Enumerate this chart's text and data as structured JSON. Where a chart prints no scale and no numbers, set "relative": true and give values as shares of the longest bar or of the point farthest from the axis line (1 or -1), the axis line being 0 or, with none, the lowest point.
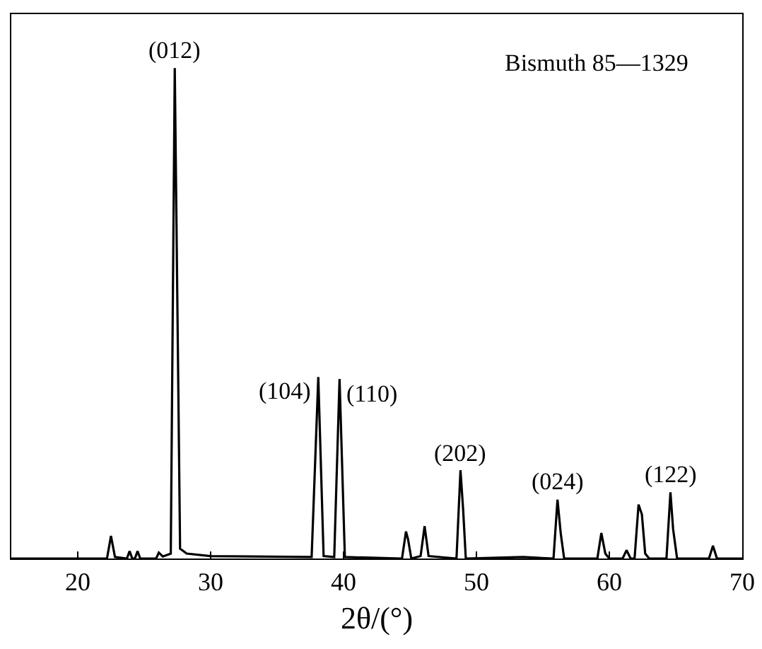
{
  "chart_data": {
    "type": "line",
    "xlabel": "2θ/(°)",
    "relative": true,
    "tick_labels": "x",
    "grid": false,
    "marker": "none",
    "line_style": "solid",
    "xlim": [
      15,
      70
    ],
    "xticks": [
      20,
      30,
      40,
      50,
      60,
      70
    ],
    "series": [
      {
        "color": "#000000",
        "x": [
          15,
          22.2,
          22.5,
          22.8,
          23.7,
          23.9,
          24.1,
          24.3,
          24.5,
          24.7,
          25.9,
          26.1,
          26.4,
          27.0,
          27.3,
          27.7,
          28.2,
          30,
          37.6,
          38.1,
          38.5,
          39.3,
          39.7,
          40.1,
          44.4,
          44.7,
          44.85,
          45.1,
          45.8,
          46.1,
          46.4,
          48.5,
          48.8,
          49.0,
          49.2,
          53.5,
          55.8,
          56.1,
          56.35,
          56.6,
          59.1,
          59.4,
          59.7,
          60.0,
          61.0,
          61.3,
          61.6,
          61.9,
          62.2,
          62.45,
          62.7,
          63.0,
          64.3,
          64.6,
          64.8,
          65.1,
          67.5,
          67.8,
          68.1,
          70
        ],
        "values": [
          0,
          0,
          0.046,
          0.003,
          0,
          0.015,
          0,
          0,
          0.015,
          0,
          0,
          0.012,
          0.004,
          0.01,
          1,
          0.02,
          0.01,
          0.005,
          0.003,
          0.37,
          0.005,
          0.003,
          0.366,
          0.003,
          0,
          0.055,
          0.04,
          0,
          0.005,
          0.066,
          0.005,
          0,
          0.18,
          0.1,
          0,
          0.003,
          0,
          0.12,
          0.05,
          0,
          0,
          0.052,
          0.01,
          0,
          0,
          0.017,
          0,
          0,
          0.11,
          0.09,
          0.01,
          0,
          0,
          0.135,
          0.06,
          0,
          0,
          0.026,
          0,
          0
        ]
      }
    ],
    "annotations": [
      {
        "text": "(012)",
        "x": 27.3,
        "y": 1
      },
      {
        "text": "(104)",
        "x": 38.1,
        "y": 0.37
      },
      {
        "text": "(110)",
        "x": 39.7,
        "y": 0.366
      },
      {
        "text": "(202)",
        "x": 48.8,
        "y": 0.18
      },
      {
        "text": "(024)",
        "x": 56.1,
        "y": 0.12
      },
      {
        "text": "(122)",
        "x": 64.6,
        "y": 0.135
      },
      "Bismuth 85—1329"
    ]
  }
}
